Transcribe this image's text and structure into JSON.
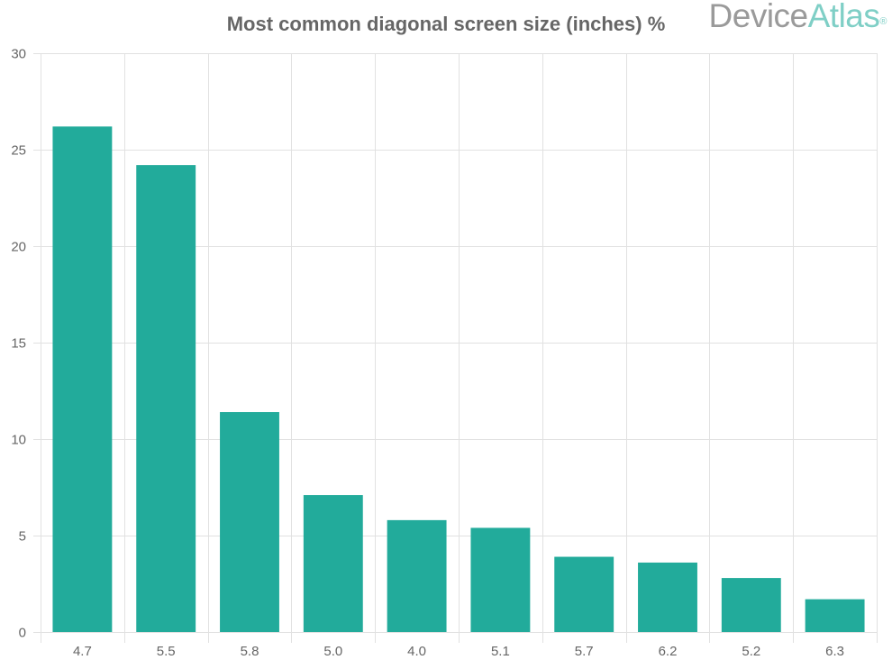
{
  "title": "Most common diagonal screen size (inches) %",
  "logo": {
    "part1": "Device",
    "part2": "Atlas",
    "mark": "®"
  },
  "colors": {
    "bar": "#22ab9b",
    "grid": "#e1e1e1",
    "axis_text": "#666666",
    "title": "#666666"
  },
  "chart_data": {
    "type": "bar",
    "title": "Most common diagonal screen size (inches) %",
    "xlabel": "",
    "ylabel": "",
    "categories": [
      "4.7",
      "5.5",
      "5.8",
      "5.0",
      "4.0",
      "5.1",
      "5.7",
      "6.2",
      "5.2",
      "6.3"
    ],
    "values": [
      26.2,
      24.2,
      11.4,
      7.1,
      5.8,
      5.4,
      3.9,
      3.6,
      2.8,
      1.7
    ],
    "ylim": [
      0,
      30
    ],
    "yticks": [
      0,
      5,
      10,
      15,
      20,
      25,
      30
    ],
    "grid": true,
    "legend": "none"
  }
}
